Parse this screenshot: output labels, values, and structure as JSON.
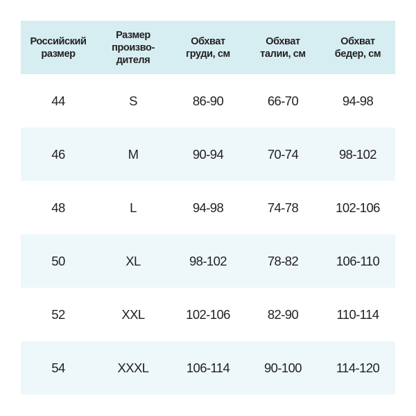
{
  "table": {
    "header": [
      [
        "Российский",
        "размер"
      ],
      [
        "Размер",
        "произво-",
        "дителя"
      ],
      [
        "Обхват",
        "груди, см"
      ],
      [
        "Обхват",
        "талии, см"
      ],
      [
        "Обхват",
        "бедер, см"
      ]
    ],
    "rows": [
      [
        "44",
        "S",
        "86-90",
        "66-70",
        "94-98"
      ],
      [
        "46",
        "M",
        "90-94",
        "70-74",
        "98-102"
      ],
      [
        "48",
        "L",
        "94-98",
        "74-78",
        "102-106"
      ],
      [
        "50",
        "XL",
        "98-102",
        "78-82",
        "106-110"
      ],
      [
        "52",
        "XXL",
        "102-106",
        "82-90",
        "110-114"
      ],
      [
        "54",
        "XXXL",
        "106-114",
        "90-100",
        "114-120"
      ]
    ]
  }
}
